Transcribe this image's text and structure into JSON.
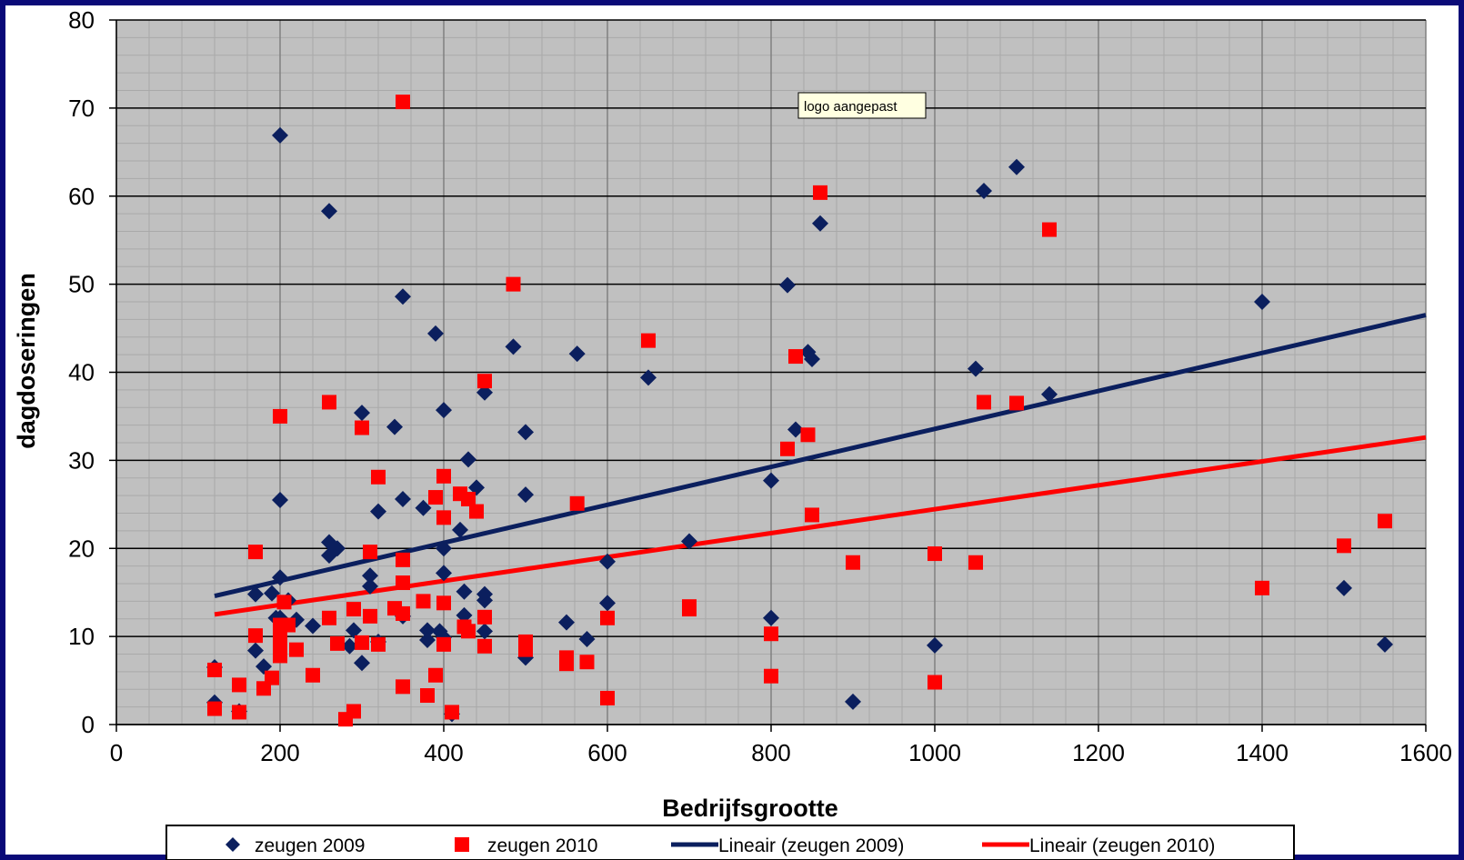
{
  "chart_data": {
    "type": "scatter",
    "title": "",
    "xlabel": "Bedrijfsgrootte",
    "ylabel": "dagdoseringen",
    "xlim": [
      0,
      1600
    ],
    "ylim": [
      0,
      80
    ],
    "xticks": [
      0,
      200,
      400,
      600,
      800,
      1000,
      1200,
      1400,
      1600
    ],
    "yticks": [
      0,
      10,
      20,
      30,
      40,
      50,
      60,
      70,
      80
    ],
    "grid": true,
    "legend_position": "bottom",
    "annotation": "logo aangepast",
    "series": [
      {
        "name": "zeugen 2009",
        "marker": "diamond",
        "color": "#0b1f5e",
        "points": [
          [
            120,
            6.5
          ],
          [
            120,
            2.5
          ],
          [
            150,
            1.5
          ],
          [
            170,
            14.8
          ],
          [
            170,
            8.4
          ],
          [
            180,
            6.6
          ],
          [
            190,
            14.9
          ],
          [
            195,
            12.1
          ],
          [
            200,
            66.9
          ],
          [
            200,
            25.5
          ],
          [
            200,
            16.7
          ],
          [
            200,
            12.1
          ],
          [
            210,
            14.1
          ],
          [
            220,
            11.9
          ],
          [
            240,
            11.2
          ],
          [
            260,
            58.3
          ],
          [
            260,
            20.7
          ],
          [
            260,
            19.2
          ],
          [
            270,
            20
          ],
          [
            285,
            8.9
          ],
          [
            290,
            10.7
          ],
          [
            300,
            35.4
          ],
          [
            300,
            7
          ],
          [
            310,
            16.9
          ],
          [
            310,
            15.7
          ],
          [
            320,
            24.2
          ],
          [
            320,
            9.4
          ],
          [
            340,
            33.8
          ],
          [
            350,
            48.6
          ],
          [
            350,
            25.6
          ],
          [
            350,
            12.3
          ],
          [
            375,
            24.6
          ],
          [
            380,
            10.7
          ],
          [
            380,
            9.6
          ],
          [
            390,
            44.4
          ],
          [
            395,
            10.6
          ],
          [
            400,
            35.7
          ],
          [
            400,
            20
          ],
          [
            400,
            17.2
          ],
          [
            400,
            9.9
          ],
          [
            410,
            1.2
          ],
          [
            420,
            22.1
          ],
          [
            430,
            30.1
          ],
          [
            425,
            15.1
          ],
          [
            425,
            12.4
          ],
          [
            440,
            26.9
          ],
          [
            450,
            37.7
          ],
          [
            450,
            14.8
          ],
          [
            450,
            14.1
          ],
          [
            450,
            10.6
          ],
          [
            485,
            42.9
          ],
          [
            500,
            33.2
          ],
          [
            500,
            26.1
          ],
          [
            500,
            7.6
          ],
          [
            550,
            11.6
          ],
          [
            563,
            42.1
          ],
          [
            575,
            9.7
          ],
          [
            600,
            18.5
          ],
          [
            600,
            13.8
          ],
          [
            650,
            39.4
          ],
          [
            700,
            20.8
          ],
          [
            800,
            27.7
          ],
          [
            800,
            12.1
          ],
          [
            820,
            49.9
          ],
          [
            830,
            33.5
          ],
          [
            845,
            42.3
          ],
          [
            850,
            41.5
          ],
          [
            860,
            56.9
          ],
          [
            900,
            2.6
          ],
          [
            1000,
            9
          ],
          [
            1050,
            40.4
          ],
          [
            1060,
            60.6
          ],
          [
            1100,
            63.3
          ],
          [
            1140,
            37.5
          ],
          [
            1400,
            48
          ],
          [
            1500,
            15.5
          ],
          [
            1550,
            9.1
          ]
        ]
      },
      {
        "name": "zeugen 2010",
        "marker": "square",
        "color": "#ff0000",
        "points": [
          [
            120,
            6.2
          ],
          [
            120,
            1.8
          ],
          [
            150,
            4.5
          ],
          [
            150,
            1.4
          ],
          [
            170,
            19.6
          ],
          [
            170,
            10.1
          ],
          [
            180,
            4.1
          ],
          [
            190,
            5.3
          ],
          [
            200,
            35
          ],
          [
            200,
            11.3
          ],
          [
            200,
            10.1
          ],
          [
            200,
            9
          ],
          [
            200,
            7.8
          ],
          [
            205,
            13.9
          ],
          [
            210,
            11.3
          ],
          [
            220,
            8.5
          ],
          [
            240,
            5.6
          ],
          [
            260,
            36.6
          ],
          [
            260,
            12.1
          ],
          [
            270,
            9.2
          ],
          [
            280,
            0.6
          ],
          [
            290,
            1.5
          ],
          [
            290,
            13.1
          ],
          [
            300,
            33.7
          ],
          [
            300,
            9.3
          ],
          [
            310,
            19.6
          ],
          [
            310,
            12.3
          ],
          [
            320,
            28.1
          ],
          [
            320,
            9.1
          ],
          [
            340,
            13.2
          ],
          [
            350,
            70.7
          ],
          [
            350,
            18.7
          ],
          [
            350,
            16.1
          ],
          [
            350,
            12.6
          ],
          [
            350,
            4.3
          ],
          [
            375,
            14
          ],
          [
            380,
            3.3
          ],
          [
            390,
            25.8
          ],
          [
            390,
            5.6
          ],
          [
            400,
            28.2
          ],
          [
            400,
            23.5
          ],
          [
            400,
            13.8
          ],
          [
            400,
            9.1
          ],
          [
            410,
            1.4
          ],
          [
            420,
            26.2
          ],
          [
            430,
            25.6
          ],
          [
            425,
            11.1
          ],
          [
            430,
            10.6
          ],
          [
            440,
            24.2
          ],
          [
            450,
            39
          ],
          [
            450,
            12.2
          ],
          [
            450,
            8.9
          ],
          [
            485,
            50
          ],
          [
            500,
            9.4
          ],
          [
            500,
            8.5
          ],
          [
            550,
            7.6
          ],
          [
            550,
            6.9
          ],
          [
            563,
            25.1
          ],
          [
            575,
            7.1
          ],
          [
            600,
            12.1
          ],
          [
            600,
            3
          ],
          [
            650,
            43.6
          ],
          [
            700,
            13.4
          ],
          [
            700,
            13.1
          ],
          [
            800,
            10.3
          ],
          [
            800,
            5.5
          ],
          [
            820,
            31.3
          ],
          [
            830,
            41.8
          ],
          [
            845,
            32.9
          ],
          [
            850,
            23.8
          ],
          [
            860,
            60.4
          ],
          [
            900,
            18.4
          ],
          [
            1000,
            19.4
          ],
          [
            1000,
            4.8
          ],
          [
            1050,
            18.4
          ],
          [
            1060,
            36.6
          ],
          [
            1100,
            36.5
          ],
          [
            1140,
            56.2
          ],
          [
            1400,
            15.5
          ],
          [
            1500,
            20.3
          ],
          [
            1550,
            23.1
          ]
        ]
      },
      {
        "name": "Lineair (zeugen 2009)",
        "type": "line",
        "color": "#0b1f5e",
        "x": [
          120,
          1600
        ],
        "y": [
          14.6,
          46.5
        ]
      },
      {
        "name": "Lineair (zeugen 2010)",
        "type": "line",
        "color": "#ff0000",
        "x": [
          120,
          1600
        ],
        "y": [
          12.5,
          32.6
        ]
      }
    ]
  }
}
